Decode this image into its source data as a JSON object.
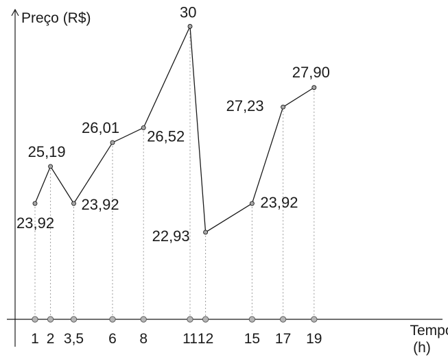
{
  "chart_data": {
    "type": "line",
    "ylabel": "Preço (R$)",
    "xlabel": [
      "Tempo",
      "(h)"
    ],
    "x": [
      1,
      2,
      3.5,
      6,
      8,
      11,
      12,
      15,
      17,
      19
    ],
    "x_tick_labels": [
      "1",
      "2",
      "3,5",
      "6",
      "8",
      "11",
      "12",
      "15",
      "17",
      "19"
    ],
    "values": [
      23.92,
      25.19,
      23.92,
      26.01,
      26.52,
      30,
      22.93,
      23.92,
      27.23,
      27.9
    ],
    "value_labels": [
      "23,92",
      "25,19",
      "23,92",
      "26,01",
      "26,52",
      "30",
      "22,93",
      "23,92",
      "27,23",
      "27,90"
    ],
    "grid": false,
    "legend": "none"
  }
}
